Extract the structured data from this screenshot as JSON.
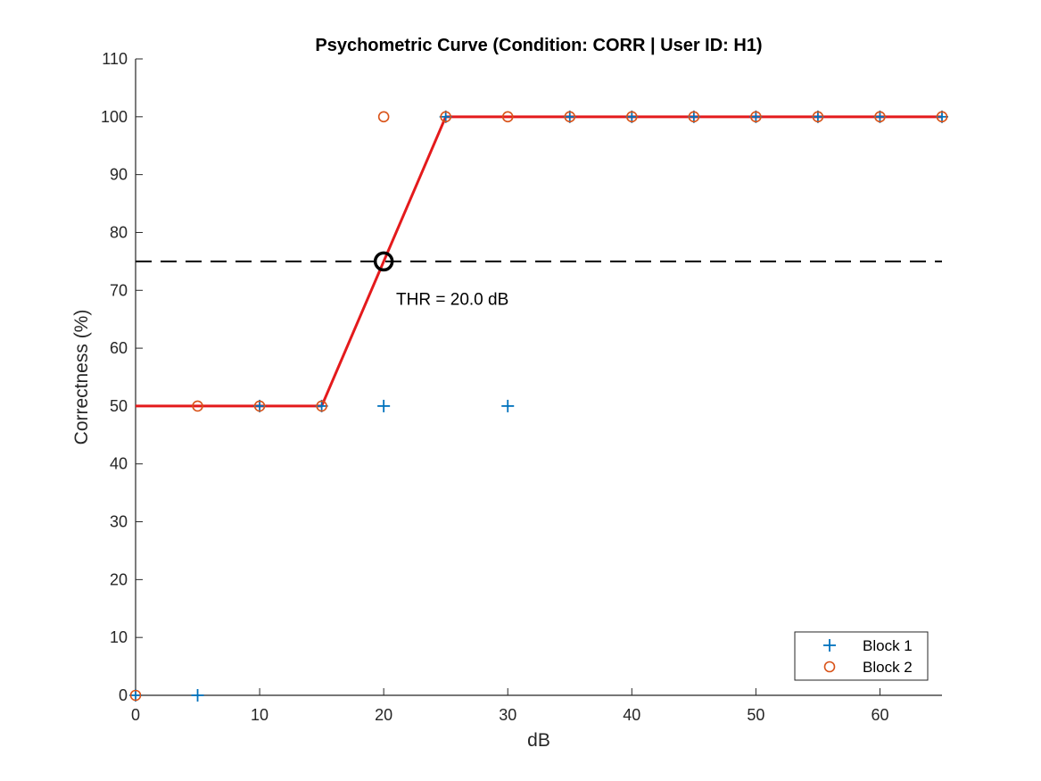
{
  "chart_data": {
    "type": "line",
    "title": "Psychometric Curve (Condition: CORR | User ID: H1)",
    "xlabel": "dB",
    "ylabel": "Correctness (%)",
    "xlim": [
      0,
      65
    ],
    "ylim": [
      0,
      110
    ],
    "xticks": [
      0,
      10,
      20,
      30,
      40,
      50,
      60
    ],
    "yticks": [
      0,
      10,
      20,
      30,
      40,
      50,
      60,
      70,
      80,
      90,
      100,
      110
    ],
    "grid": false,
    "legend_position": "bottom-right",
    "series": [
      {
        "name": "Block 1",
        "marker": "plus",
        "color": "#0072BD",
        "x": [
          0,
          5,
          10,
          15,
          20,
          25,
          30,
          35,
          40,
          45,
          50,
          55,
          60,
          65
        ],
        "y": [
          0,
          0,
          50,
          50,
          50,
          100,
          50,
          100,
          100,
          100,
          100,
          100,
          100,
          100
        ]
      },
      {
        "name": "Block 2",
        "marker": "circle",
        "color": "#D95319",
        "x": [
          0,
          5,
          10,
          15,
          20,
          25,
          30,
          35,
          40,
          45,
          50,
          55,
          60,
          65
        ],
        "y": [
          0,
          50,
          50,
          50,
          100,
          100,
          100,
          100,
          100,
          100,
          100,
          100,
          100,
          100
        ]
      }
    ],
    "fit_line": {
      "color": "#E41A1C",
      "x": [
        0,
        15,
        25,
        65
      ],
      "y": [
        50,
        50,
        100,
        100
      ]
    },
    "threshold_line": {
      "y": 75,
      "style": "dashed",
      "color": "#000000"
    },
    "threshold_point": {
      "x": 20,
      "y": 75
    },
    "annotation": {
      "text": "THR = 20.0 dB",
      "x": 21,
      "y": 67.5
    }
  }
}
